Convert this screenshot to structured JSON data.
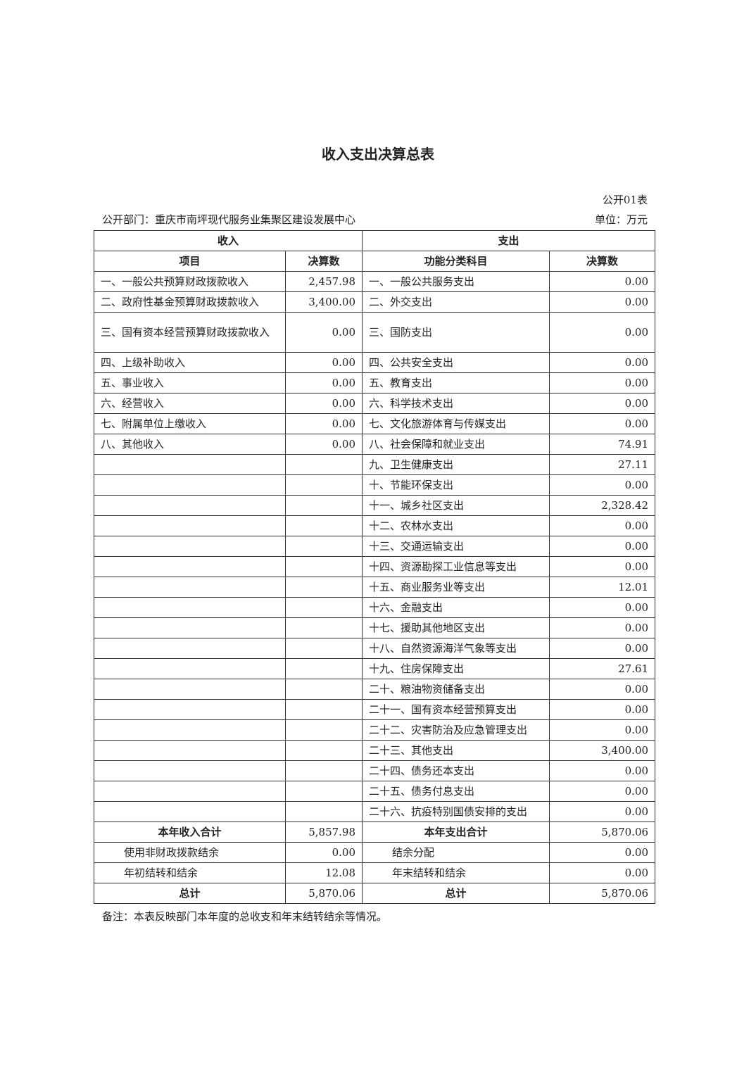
{
  "title": "收入支出决算总表",
  "form_no": "公开01表",
  "department": "公开部门：重庆市南坪现代服务业集聚区建设发展中心",
  "unit": "单位：万元",
  "table": {
    "income_header": "收入",
    "expense_header": "支出",
    "columns": [
      "项目",
      "决算数",
      "功能分类科目",
      "决算数"
    ],
    "income_rows": [
      {
        "item": "一、一般公共预算财政拨款收入",
        "amount": "2,457.98"
      },
      {
        "item": "二、政府性基金预算财政拨款收入",
        "amount": "3,400.00"
      },
      {
        "item": "三、国有资本经营预算财政拨款收入",
        "amount": "0.00"
      },
      {
        "item": "四、上级补助收入",
        "amount": "0.00"
      },
      {
        "item": "五、事业收入",
        "amount": "0.00"
      },
      {
        "item": "六、经营收入",
        "amount": "0.00"
      },
      {
        "item": "七、附属单位上缴收入",
        "amount": "0.00"
      },
      {
        "item": "八、其他收入",
        "amount": "0.00"
      }
    ],
    "expense_rows": [
      {
        "item": "一、一般公共服务支出",
        "amount": "0.00"
      },
      {
        "item": "二、外交支出",
        "amount": "0.00"
      },
      {
        "item": "三、国防支出",
        "amount": "0.00"
      },
      {
        "item": "四、公共安全支出",
        "amount": "0.00"
      },
      {
        "item": "五、教育支出",
        "amount": "0.00"
      },
      {
        "item": "六、科学技术支出",
        "amount": "0.00"
      },
      {
        "item": "七、文化旅游体育与传媒支出",
        "amount": "0.00"
      },
      {
        "item": "八、社会保障和就业支出",
        "amount": "74.91"
      },
      {
        "item": "九、卫生健康支出",
        "amount": "27.11"
      },
      {
        "item": "十、节能环保支出",
        "amount": "0.00"
      },
      {
        "item": "十一、城乡社区支出",
        "amount": "2,328.42"
      },
      {
        "item": "十二、农林水支出",
        "amount": "0.00"
      },
      {
        "item": "十三、交通运输支出",
        "amount": "0.00"
      },
      {
        "item": "十四、资源勘探工业信息等支出",
        "amount": "0.00"
      },
      {
        "item": "十五、商业服务业等支出",
        "amount": "12.01"
      },
      {
        "item": "十六、金融支出",
        "amount": "0.00"
      },
      {
        "item": "十七、援助其他地区支出",
        "amount": "0.00"
      },
      {
        "item": "十八、自然资源海洋气象等支出",
        "amount": "0.00"
      },
      {
        "item": "十九、住房保障支出",
        "amount": "27.61"
      },
      {
        "item": "二十、粮油物资储备支出",
        "amount": "0.00"
      },
      {
        "item": "二十一、国有资本经营预算支出",
        "amount": "0.00"
      },
      {
        "item": "二十二、灾害防治及应急管理支出",
        "amount": "0.00"
      },
      {
        "item": "二十三、其他支出",
        "amount": "3,400.00"
      },
      {
        "item": "二十四、债务还本支出",
        "amount": "0.00"
      },
      {
        "item": "二十五、债务付息支出",
        "amount": "0.00"
      },
      {
        "item": "二十六、抗疫特别国债安排的支出",
        "amount": "0.00"
      }
    ],
    "summary_rows": [
      {
        "income_item": "本年收入合计",
        "income_amount": "5,857.98",
        "expense_item": "本年支出合计",
        "expense_amount": "5,870.06",
        "bold": true
      },
      {
        "income_item": "使用非财政拨款结余",
        "income_amount": "0.00",
        "expense_item": "结余分配",
        "expense_amount": "0.00",
        "bold": false
      },
      {
        "income_item": "年初结转和结余",
        "income_amount": "12.08",
        "expense_item": "年末结转和结余",
        "expense_amount": "0.00",
        "bold": false
      },
      {
        "income_item": "总计",
        "income_amount": "5,870.06",
        "expense_item": "总计",
        "expense_amount": "5,870.06",
        "bold": true
      }
    ]
  },
  "note": "备注：本表反映部门本年度的总收支和年末结转结余等情况。"
}
